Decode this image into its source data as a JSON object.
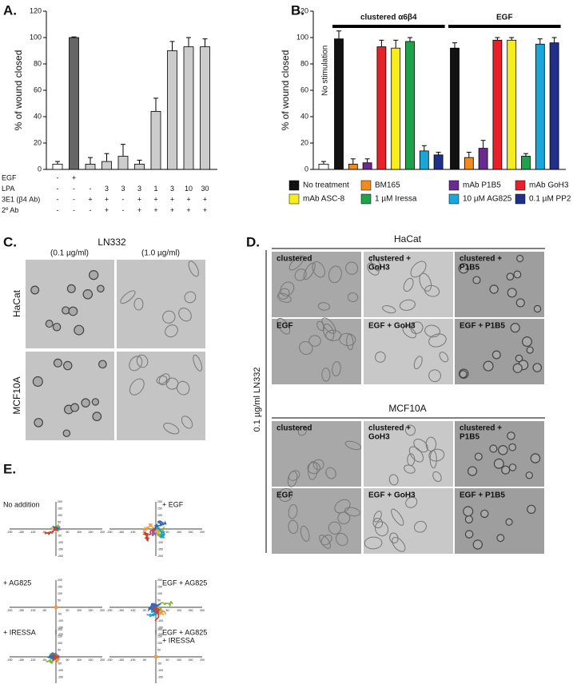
{
  "panel_letters": [
    "A.",
    "B.",
    "C.",
    "D.",
    "E."
  ],
  "chart_data": [
    {
      "type": "bar",
      "ylabel": "% of wound closed",
      "ylim": [
        0,
        120
      ],
      "yticks": [
        0,
        20,
        40,
        60,
        80,
        100,
        120
      ],
      "values": [
        4,
        100,
        4,
        6,
        10,
        4,
        44,
        90,
        93,
        93
      ],
      "errors": [
        2,
        0.5,
        5,
        6,
        9,
        3,
        10,
        7,
        7,
        6
      ],
      "colors": [
        "#ffffff",
        "#666666",
        "#cccccc",
        "#cccccc",
        "#cccccc",
        "#cccccc",
        "#cccccc",
        "#cccccc",
        "#cccccc",
        "#cccccc"
      ],
      "conditions": [
        {
          "name": "EGF",
          "values": [
            "-",
            "+",
            null,
            null,
            null,
            null,
            null,
            null,
            null,
            null
          ]
        },
        {
          "name": "LPA",
          "values": [
            "-",
            "-",
            "-",
            "3",
            "3",
            "3",
            "1",
            "3",
            "10",
            "30"
          ]
        },
        {
          "name": "3E1 (β4 Ab)",
          "values": [
            "-",
            "-",
            "+",
            "+",
            "-",
            "+",
            "+",
            "+",
            "+",
            "+"
          ]
        },
        {
          "name": "2º Ab",
          "values": [
            "-",
            "-",
            "-",
            "+",
            "-",
            "+",
            "+",
            "+",
            "+",
            "+"
          ]
        }
      ]
    },
    {
      "type": "grouped-bar",
      "ylabel": "% of wound closed",
      "ylim": [
        0,
        120
      ],
      "yticks": [
        0,
        20,
        40,
        60,
        80,
        100,
        120
      ],
      "groups": [
        "clustered α6β4",
        "EGF"
      ],
      "baseline": {
        "label": "No stimulation",
        "value": 4,
        "error": 2,
        "color": "#ffffff"
      },
      "series": [
        {
          "name": "No treatment",
          "color": "#111111",
          "values": [
            99,
            92
          ],
          "errors": [
            6,
            4
          ]
        },
        {
          "name": "BM165",
          "color": "#f08c1c",
          "values": [
            4,
            9
          ],
          "errors": [
            4,
            4
          ]
        },
        {
          "name": "mAb P1B5",
          "color": "#6a2b8f",
          "values": [
            5,
            16
          ],
          "errors": [
            3,
            6
          ]
        },
        {
          "name": "mAb GoH3",
          "color": "#e8202a",
          "values": [
            93,
            98
          ],
          "errors": [
            5,
            2
          ]
        },
        {
          "name": "mAb ASC-8",
          "color": "#f7ec1c",
          "values": [
            92,
            98
          ],
          "errors": [
            6,
            2
          ]
        },
        {
          "name": "1 µM Iressa",
          "color": "#1ea24a",
          "values": [
            97,
            10
          ],
          "errors": [
            3,
            2
          ]
        },
        {
          "name": "10 µM AG825",
          "color": "#19a6d9",
          "values": [
            14,
            95
          ],
          "errors": [
            4,
            4
          ]
        },
        {
          "name": "0.1 µM PP2",
          "color": "#1f2f8a",
          "values": [
            11,
            96
          ],
          "errors": [
            2,
            4
          ]
        }
      ]
    }
  ],
  "panel_c": {
    "title": "LN332",
    "columns": [
      "(0.1 µg/ml)",
      "(1.0 µg/ml)"
    ],
    "rows": [
      "HaCat",
      "MCF10A"
    ]
  },
  "panel_d": {
    "side_label": "0.1 µg/ml LN332",
    "blocks": [
      {
        "title": "HaCat",
        "tiles": [
          [
            "clustered"
          ],
          [
            "clustered +",
            "GoH3"
          ],
          [
            "clustered +",
            "P1B5"
          ],
          [
            "EGF"
          ],
          [
            "EGF + GoH3"
          ],
          [
            "EGF + P1B5"
          ]
        ]
      },
      {
        "title": "MCF10A",
        "tiles": [
          [
            "clustered"
          ],
          [
            "clustered +",
            "GoH3"
          ],
          [
            "clustered +",
            "P1B5"
          ],
          [
            "EGF"
          ],
          [
            "EGF + GoH3"
          ],
          [
            "EGF + P1B5"
          ]
        ]
      }
    ]
  },
  "panel_e": {
    "ticks": [
      -200,
      -150,
      -100,
      -50,
      50,
      100,
      150,
      200
    ],
    "plots": [
      {
        "label": [
          "No addition"
        ]
      },
      {
        "label": [
          "+ EGF"
        ]
      },
      {
        "label": [
          "+ AG825"
        ]
      },
      {
        "label": [
          "EGF + AG825"
        ]
      },
      {
        "label": [
          "+ IRESSA"
        ]
      },
      {
        "label": [
          "EGF + AG825",
          "+ IRESSA"
        ]
      }
    ]
  }
}
